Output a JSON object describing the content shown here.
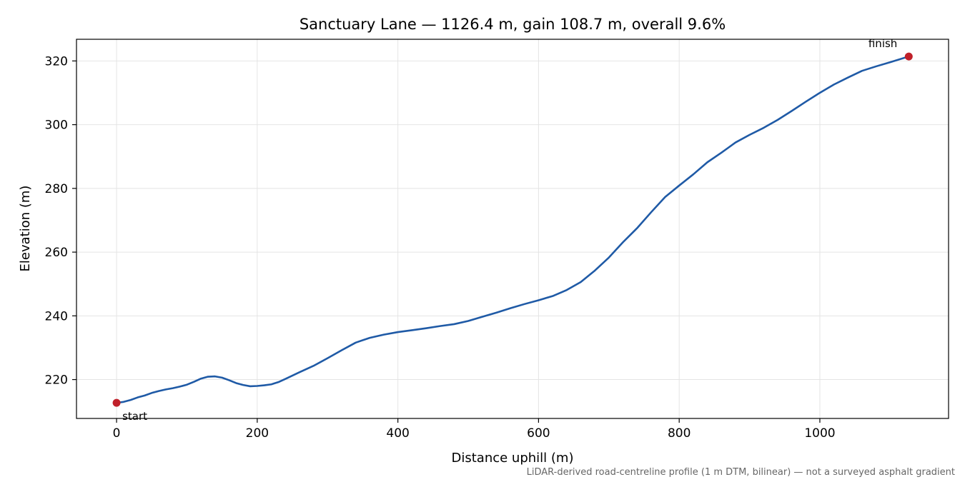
{
  "chart_data": {
    "type": "line",
    "title": "Sanctuary Lane — 1126.4 m, gain 108.7 m, overall 9.6%",
    "xlabel": "Distance uphill (m)",
    "ylabel": "Elevation (m)",
    "xlim": [
      -57,
      1183
    ],
    "ylim": [
      207.8,
      326.8
    ],
    "xticks": [
      0,
      200,
      400,
      600,
      800,
      1000
    ],
    "yticks": [
      220,
      240,
      260,
      280,
      300,
      320
    ],
    "grid": true,
    "footnote": "LiDAR-derived road-centreline profile (1 m DTM, bilinear) — not a surveyed asphalt gradient",
    "colors": {
      "line": "#1f5aa6",
      "marker": "#c0202a",
      "grid": "#e4e4e4",
      "footnote": "#666666"
    },
    "series": [
      {
        "x": [
          0,
          10,
          20,
          30,
          40,
          50,
          60,
          70,
          80,
          90,
          100,
          110,
          120,
          130,
          140,
          150,
          160,
          170,
          180,
          190,
          200,
          210,
          220,
          230,
          240,
          260,
          280,
          300,
          320,
          340,
          360,
          380,
          400,
          420,
          440,
          460,
          480,
          500,
          520,
          540,
          560,
          580,
          600,
          620,
          640,
          660,
          680,
          700,
          720,
          740,
          760,
          780,
          800,
          820,
          840,
          860,
          880,
          900,
          920,
          940,
          960,
          980,
          1000,
          1020,
          1040,
          1060,
          1080,
          1100,
          1126.4
        ],
        "y": [
          212.7,
          213.0,
          213.6,
          214.4,
          215.0,
          215.8,
          216.4,
          216.9,
          217.3,
          217.8,
          218.4,
          219.3,
          220.3,
          220.9,
          221.0,
          220.6,
          219.8,
          218.9,
          218.3,
          217.9,
          218.0,
          218.2,
          218.5,
          219.2,
          220.2,
          222.3,
          224.3,
          226.7,
          229.2,
          231.6,
          233.1,
          234.1,
          234.9,
          235.5,
          236.1,
          236.8,
          237.4,
          238.4,
          239.7,
          241.0,
          242.4,
          243.7,
          244.9,
          246.2,
          248.1,
          250.6,
          254.2,
          258.3,
          263.1,
          267.5,
          272.5,
          277.3,
          280.9,
          284.4,
          288.2,
          291.2,
          294.4,
          296.8,
          299.0,
          301.5,
          304.3,
          307.2,
          310.0,
          312.6,
          314.8,
          316.9,
          318.3,
          319.6,
          321.4
        ]
      }
    ],
    "markers": [
      {
        "label": "start",
        "x": 0,
        "y": 212.7,
        "label_position": "below-right"
      },
      {
        "label": "finish",
        "x": 1126.4,
        "y": 321.4,
        "label_position": "above-left"
      }
    ]
  }
}
